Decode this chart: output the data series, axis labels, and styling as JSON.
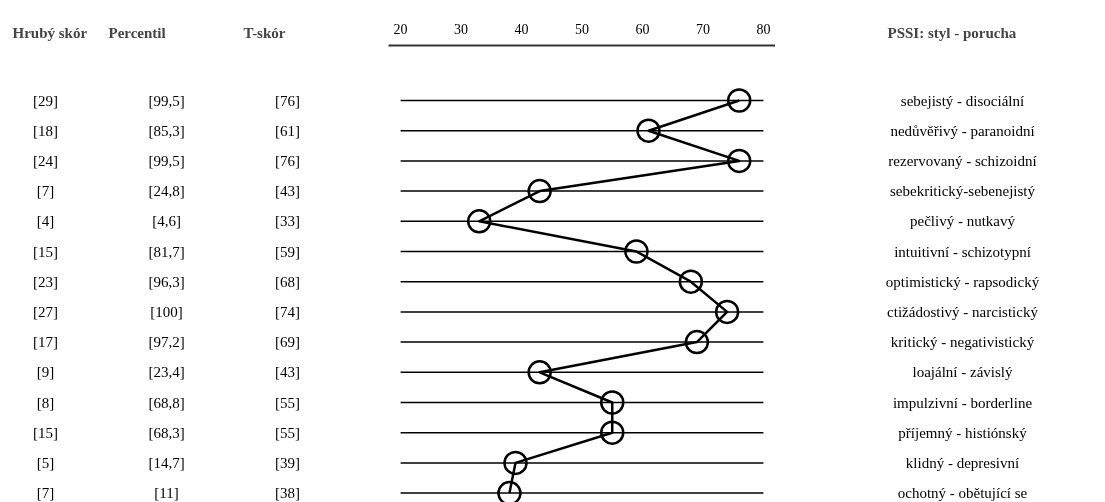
{
  "chart_data": {
    "type": "line",
    "orientation": "horizontal",
    "ylabel": "PSSI: styl - porucha",
    "categories": [
      "sebejistý - disociální",
      "nedůvěřivý - paranoidní",
      "rezervovaný - schizoidní",
      "sebekritický-sebenejistý",
      "pečlivý - nutkavý",
      "intuitivní - schizotypní",
      "optimistický - rapsodický",
      "ctižádostivý - narcistický",
      "kritický - negativistický",
      "loajální - závislý",
      "impulzivní - borderline",
      "příjemný - histiónský",
      "klidný - depresivní",
      "ochotný - obětující se"
    ],
    "series": [
      {
        "color": "#000000",
        "values": [
          76,
          61,
          76,
          43,
          33,
          59,
          68,
          74,
          69,
          43,
          55,
          55,
          39,
          38
        ],
        "value_labels": [
          "[76]",
          "[61]",
          "[76]",
          "[43]",
          "[33]",
          "[59]",
          "[68]",
          "[74]",
          "[69]",
          "[43]",
          "[55]",
          "[55]",
          "[39]",
          "[38]"
        ]
      }
    ],
    "xlim": [
      18,
      82
    ],
    "xticks": [
      20,
      30,
      40,
      50,
      60,
      70,
      80
    ],
    "grid": "y",
    "marker": "circle",
    "line_style": "solid",
    "tick_labels": "x",
    "annotations": [
      "Hrubý skór",
      "Percentil",
      "T-skór",
      "[29]",
      "[99,5]",
      "[18]",
      "[85,3]",
      "[24]",
      "[99,5]",
      "[7]",
      "[24,8]",
      "[4]",
      "[4,6]",
      "[15]",
      "[81,7]",
      "[23]",
      "[96,3]",
      "[27]",
      "[100]",
      "[17]",
      "[97,2]",
      "[9]",
      "[23,4]",
      "[8]",
      "[68,8]",
      "[15]",
      "[68,3]",
      "[5]",
      "[14,7]",
      "[7]",
      "[11]"
    ]
  }
}
